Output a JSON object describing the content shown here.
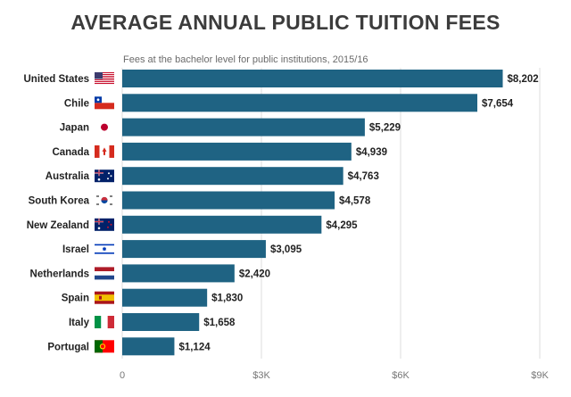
{
  "title": "AVERAGE ANNUAL PUBLIC TUITION FEES",
  "subtitle": "Fees at the bachelor level for public institutions, 2015/16",
  "colors": {
    "bar": "#1f6383",
    "grid": "#dddddd",
    "text": "#222222"
  },
  "chart_data": {
    "type": "bar",
    "orientation": "horizontal",
    "title": "AVERAGE ANNUAL PUBLIC TUITION FEES",
    "subtitle": "Fees at the bachelor level for public institutions, 2015/16",
    "categories": [
      "United States",
      "Chile",
      "Japan",
      "Canada",
      "Australia",
      "South Korea",
      "New Zealand",
      "Israel",
      "Netherlands",
      "Spain",
      "Italy",
      "Portugal"
    ],
    "values": [
      8202,
      7654,
      5229,
      4939,
      4763,
      4578,
      4295,
      3095,
      2420,
      1830,
      1658,
      1124
    ],
    "value_labels": [
      "$8,202",
      "$7,654",
      "$5,229",
      "$4,939",
      "$4,763",
      "$4,578",
      "$4,295",
      "$3,095",
      "$2,420",
      "$1,830",
      "$1,658",
      "$1,124"
    ],
    "flag_icons": [
      "us-flag-icon",
      "chile-flag-icon",
      "japan-flag-icon",
      "canada-flag-icon",
      "australia-flag-icon",
      "south-korea-flag-icon",
      "new-zealand-flag-icon",
      "israel-flag-icon",
      "netherlands-flag-icon",
      "spain-flag-icon",
      "italy-flag-icon",
      "portugal-flag-icon"
    ],
    "xlim": [
      0,
      9000
    ],
    "xticks": [
      0,
      3000,
      6000,
      9000
    ],
    "xtick_labels": [
      "0",
      "$3K",
      "$6K",
      "$9K"
    ],
    "grid": true,
    "legend": "none"
  }
}
